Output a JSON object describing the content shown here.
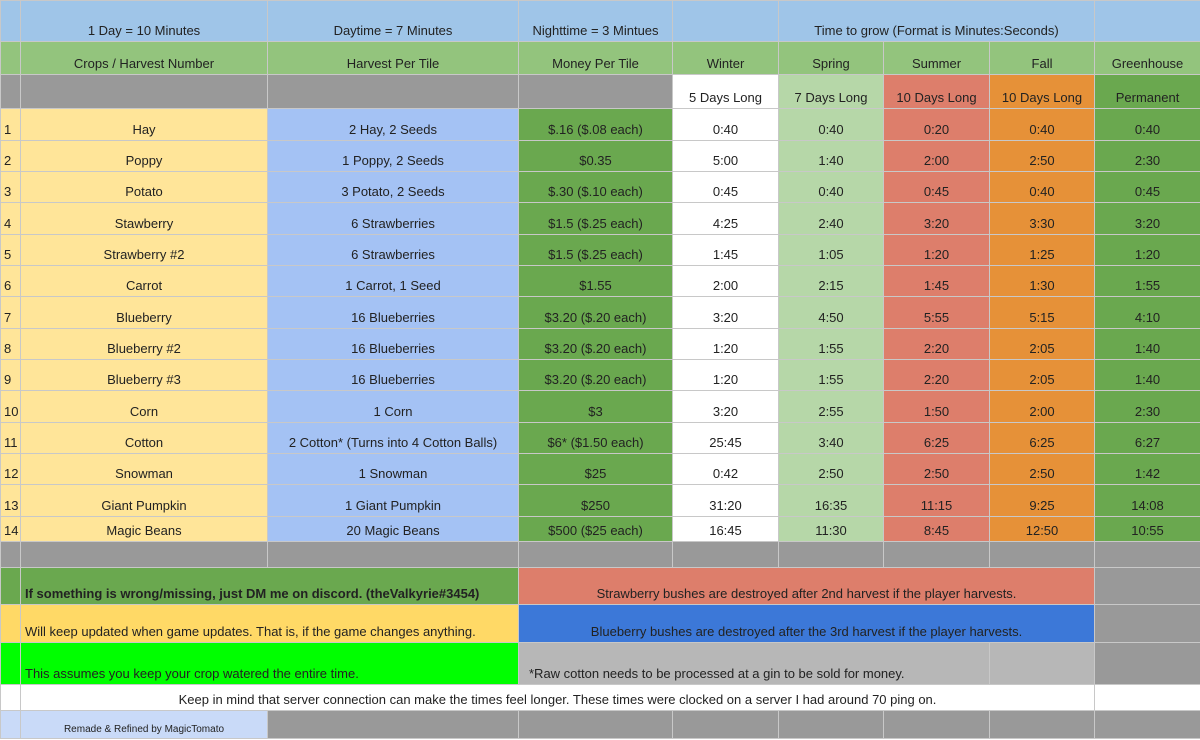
{
  "top": {
    "day": "1 Day = 10 Minutes",
    "daytime": "Daytime = 7 Minutes",
    "nighttime": "Nighttime = 3 Mintues",
    "grow": "Time to grow (Format is Minutes:Seconds)"
  },
  "headers": {
    "crops": "Crops / Harvest Number",
    "harvest": "Harvest Per Tile",
    "money": "Money Per Tile",
    "seasons": [
      "Winter",
      "Spring",
      "Summer",
      "Fall",
      "Greenhouse"
    ],
    "lengths": [
      "5 Days Long",
      "7 Days Long",
      "10 Days Long",
      "10 Days Long",
      "Permanent"
    ]
  },
  "rows": [
    [
      "1",
      "Hay",
      "2 Hay, 2 Seeds",
      "$.16 ($.08 each)",
      "0:40",
      "0:40",
      "0:20",
      "0:40",
      "0:40"
    ],
    [
      "2",
      "Poppy",
      "1 Poppy, 2 Seeds",
      "$0.35",
      "5:00",
      "1:40",
      "2:00",
      "2:50",
      "2:30"
    ],
    [
      "3",
      "Potato",
      "3 Potato, 2 Seeds",
      "$.30 ($.10 each)",
      "0:45",
      "0:40",
      "0:45",
      "0:40",
      "0:45"
    ],
    [
      "4",
      "Stawberry",
      "6 Strawberries",
      "$1.5 ($.25 each)",
      "4:25",
      "2:40",
      "3:20",
      "3:30",
      "3:20"
    ],
    [
      "5",
      "Strawberry #2",
      "6 Strawberries",
      "$1.5 ($.25 each)",
      "1:45",
      "1:05",
      "1:20",
      "1:25",
      "1:20"
    ],
    [
      "6",
      "Carrot",
      "1 Carrot, 1 Seed",
      "$1.55",
      "2:00",
      "2:15",
      "1:45",
      "1:30",
      "1:55"
    ],
    [
      "7",
      "Blueberry",
      "16 Blueberries",
      "$3.20 ($.20 each)",
      "3:20",
      "4:50",
      "5:55",
      "5:15",
      "4:10"
    ],
    [
      "8",
      "Blueberry #2",
      "16 Blueberries",
      "$3.20 ($.20 each)",
      "1:20",
      "1:55",
      "2:20",
      "2:05",
      "1:40"
    ],
    [
      "9",
      "Blueberry #3",
      "16 Blueberries",
      "$3.20 ($.20 each)",
      "1:20",
      "1:55",
      "2:20",
      "2:05",
      "1:40"
    ],
    [
      "10",
      "Corn",
      "1 Corn",
      "$3",
      "3:20",
      "2:55",
      "1:50",
      "2:00",
      "2:30"
    ],
    [
      "11",
      "Cotton",
      "2 Cotton* (Turns into 4 Cotton Balls)",
      "$6* ($1.50 each)",
      "25:45",
      "3:40",
      "6:25",
      "6:25",
      "6:27"
    ],
    [
      "12",
      "Snowman",
      "1 Snowman",
      "$25",
      "0:42",
      "2:50",
      "2:50",
      "2:50",
      "1:42"
    ],
    [
      "13",
      "Giant Pumpkin",
      "1 Giant Pumpkin",
      "$250",
      "31:20",
      "16:35",
      "11:15",
      "9:25",
      "14:08"
    ],
    [
      "14",
      "Magic Beans",
      "20 Magic Beans",
      "$500 ($25 each)",
      "16:45",
      "11:30",
      "8:45",
      "12:50",
      "10:55"
    ]
  ],
  "notes": {
    "discord": "If something is wrong/missing, just DM me on discord. (theValkyrie#3454)",
    "strawberry": "Strawberry bushes are destroyed after 2nd harvest if the player harvests.",
    "updates": "Will keep updated when game updates.  That is, if the game changes anything.",
    "blueberry": "Blueberry bushes are destroyed after the 3rd harvest if the player harvests.",
    "watered": "This assumes you keep your crop watered the entire time.",
    "cotton": "*Raw cotton needs to be processed at a gin to be sold for money.",
    "ping": "Keep in mind that server connection can make the times feel longer. These times were clocked on a server I had around 70 ping on.",
    "credit": "Remade & Refined by MagicTomato"
  },
  "colors": {
    "top": "#9fc5e8",
    "header": "#93c47d",
    "crop": "#ffe599",
    "harvest": "#a4c2f4",
    "money": "#6aa84f",
    "winter": "#ffffff",
    "spring": "#b6d7a8",
    "summer": "#dd7e6b",
    "fall": "#e69138",
    "greenhouse": "#6aa84f"
  }
}
